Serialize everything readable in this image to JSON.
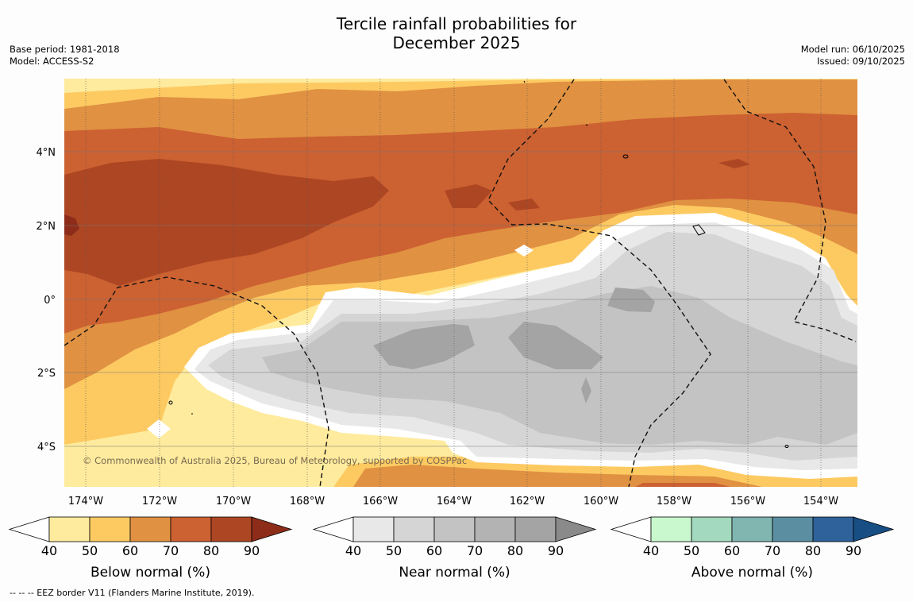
{
  "title_line1": "Tercile rainfall probabilities for",
  "title_line2": "December 2025",
  "info_left": {
    "base_period": "Base period: 1981-2018",
    "model": "Model: ACCESS-S2"
  },
  "info_right": {
    "model_run": "Model run: 06/10/2025",
    "issued": "Issued: 09/10/2025"
  },
  "map": {
    "lat_labels": [
      "4°N",
      "2°N",
      "0°",
      "2°S",
      "4°S"
    ],
    "lon_labels": [
      "174°W",
      "172°W",
      "170°W",
      "168°W",
      "166°W",
      "164°W",
      "162°W",
      "160°W",
      "158°W",
      "156°W",
      "154°W"
    ],
    "copyright": "© Commonwealth of Australia 2025, Bureau of Meteorology, supported by COSPPac"
  },
  "legends": [
    {
      "title": "Below normal (%)",
      "ticks": [
        "40",
        "50",
        "60",
        "70",
        "80",
        "90"
      ],
      "colors": [
        "#ffffff",
        "#feeb9d",
        "#fdca62",
        "#e09142",
        "#cc6131",
        "#ad4623",
        "#8c2c19"
      ]
    },
    {
      "title": "Near normal (%)",
      "ticks": [
        "40",
        "50",
        "60",
        "70",
        "80",
        "90"
      ],
      "colors": [
        "#ffffff",
        "#e8e8e8",
        "#d5d5d5",
        "#c3c3c3",
        "#b3b3b3",
        "#a4a4a4",
        "#8a8a8a"
      ]
    },
    {
      "title": "Above normal (%)",
      "ticks": [
        "40",
        "50",
        "60",
        "70",
        "80",
        "90"
      ],
      "colors": [
        "#ffffff",
        "#c9f8cf",
        "#a3d9be",
        "#80b5b0",
        "#5b8ea0",
        "#2f629a",
        "#174e84"
      ]
    }
  ],
  "footnote": "--  --  -- EEZ border V11 (Flanders Marine Institute, 2019)."
}
